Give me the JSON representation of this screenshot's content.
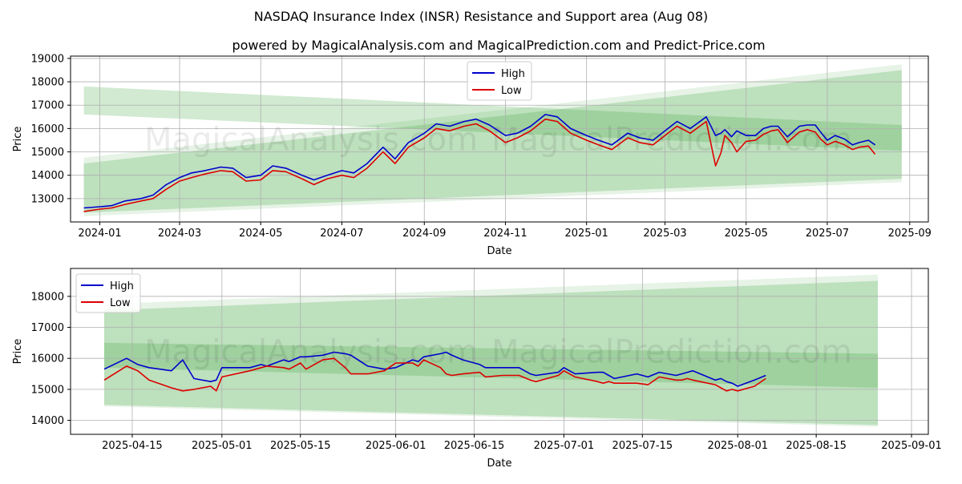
{
  "figure": {
    "title": "NASDAQ Insurance Index (INSR) Resistance and Support area (Aug 08)",
    "subtitle": "powered by MagicalAnalysis.com and MagicalPrediction.com and Predict-Price.com",
    "watermark_left": "MagicalAnalysis.com",
    "watermark_right": "MagicalPrediction.com"
  },
  "colors": {
    "high": "#0000cc",
    "low": "#dd0000",
    "band": "#2e9e2e"
  },
  "chart_data": [
    {
      "type": "line",
      "xlabel": "Date",
      "ylabel": "Price",
      "legend": {
        "position": "top-center",
        "entries": [
          "High",
          "Low"
        ]
      },
      "grid": true,
      "xlim": [
        "2023-12-10",
        "2025-09-15"
      ],
      "ylim": [
        12000,
        19100
      ],
      "xticks": [
        "2024-01-01",
        "2024-03-01",
        "2024-05-01",
        "2024-07-01",
        "2024-09-01",
        "2024-11-01",
        "2025-01-01",
        "2025-03-01",
        "2025-05-01",
        "2025-07-01",
        "2025-09-01"
      ],
      "xtick_labels": [
        "2024-01",
        "2024-03",
        "2024-05",
        "2024-07",
        "2024-09",
        "2024-11",
        "2025-01",
        "2025-03",
        "2025-05",
        "2025-07",
        "2025-09"
      ],
      "yticks": [
        13000,
        14000,
        15000,
        16000,
        17000,
        18000,
        19000
      ],
      "bands": [
        {
          "kind": "resistance",
          "x": [
            "2023-12-20",
            "2025-08-26"
          ],
          "upper": [
            17800,
            16150
          ],
          "lower": [
            16600,
            15050
          ]
        },
        {
          "kind": "support",
          "x": [
            "2023-12-20",
            "2025-08-26"
          ],
          "upper": [
            14500,
            18500
          ],
          "lower": [
            12400,
            13850
          ]
        },
        {
          "kind": "support-outer",
          "x": [
            "2023-12-20",
            "2025-08-26"
          ],
          "upper": [
            14750,
            18750
          ],
          "lower": [
            12250,
            13700
          ]
        }
      ],
      "series": [
        {
          "name": "High",
          "x": [
            "2023-12-20",
            "2024-01-01",
            "2024-01-10",
            "2024-01-20",
            "2024-02-01",
            "2024-02-10",
            "2024-02-20",
            "2024-03-01",
            "2024-03-10",
            "2024-03-20",
            "2024-04-01",
            "2024-04-10",
            "2024-04-20",
            "2024-05-01",
            "2024-05-10",
            "2024-05-20",
            "2024-06-01",
            "2024-06-10",
            "2024-06-20",
            "2024-07-01",
            "2024-07-10",
            "2024-07-20",
            "2024-08-01",
            "2024-08-10",
            "2024-08-20",
            "2024-09-01",
            "2024-09-10",
            "2024-09-20",
            "2024-10-01",
            "2024-10-10",
            "2024-10-20",
            "2024-11-01",
            "2024-11-10",
            "2024-11-20",
            "2024-12-01",
            "2024-12-10",
            "2024-12-20",
            "2025-01-01",
            "2025-01-10",
            "2025-01-20",
            "2025-02-01",
            "2025-02-10",
            "2025-02-20",
            "2025-03-01",
            "2025-03-10",
            "2025-03-20",
            "2025-04-01",
            "2025-04-08",
            "2025-04-12",
            "2025-04-15",
            "2025-04-20",
            "2025-04-24",
            "2025-05-01",
            "2025-05-08",
            "2025-05-14",
            "2025-05-20",
            "2025-05-25",
            "2025-06-01",
            "2025-06-05",
            "2025-06-10",
            "2025-06-16",
            "2025-06-22",
            "2025-06-26",
            "2025-07-01",
            "2025-07-07",
            "2025-07-14",
            "2025-07-20",
            "2025-07-25",
            "2025-08-01",
            "2025-08-06"
          ],
          "y": [
            12600,
            12650,
            12700,
            12900,
            13000,
            13150,
            13600,
            13900,
            14100,
            14200,
            14350,
            14300,
            13900,
            14000,
            14400,
            14300,
            14000,
            13800,
            14000,
            14200,
            14100,
            14500,
            15200,
            14700,
            15400,
            15800,
            16200,
            16100,
            16300,
            16400,
            16150,
            15700,
            15800,
            16100,
            16600,
            16500,
            16000,
            15700,
            15500,
            15300,
            15800,
            15600,
            15500,
            15900,
            16300,
            16000,
            16500,
            15700,
            15800,
            15950,
            15650,
            15900,
            15700,
            15700,
            16000,
            16100,
            16100,
            15650,
            15850,
            16100,
            16150,
            16150,
            15850,
            15500,
            15700,
            15550,
            15300,
            15400,
            15500,
            15300
          ]
        },
        {
          "name": "Low",
          "x": [
            "2023-12-20",
            "2024-01-01",
            "2024-01-10",
            "2024-01-20",
            "2024-02-01",
            "2024-02-10",
            "2024-02-20",
            "2024-03-01",
            "2024-03-10",
            "2024-03-20",
            "2024-04-01",
            "2024-04-10",
            "2024-04-20",
            "2024-05-01",
            "2024-05-10",
            "2024-05-20",
            "2024-06-01",
            "2024-06-10",
            "2024-06-20",
            "2024-07-01",
            "2024-07-10",
            "2024-07-20",
            "2024-08-01",
            "2024-08-10",
            "2024-08-20",
            "2024-09-01",
            "2024-09-10",
            "2024-09-20",
            "2024-10-01",
            "2024-10-10",
            "2024-10-20",
            "2024-11-01",
            "2024-11-10",
            "2024-11-20",
            "2024-12-01",
            "2024-12-10",
            "2024-12-20",
            "2025-01-01",
            "2025-01-10",
            "2025-01-20",
            "2025-02-01",
            "2025-02-10",
            "2025-02-20",
            "2025-03-01",
            "2025-03-10",
            "2025-03-20",
            "2025-04-01",
            "2025-04-08",
            "2025-04-12",
            "2025-04-15",
            "2025-04-20",
            "2025-04-24",
            "2025-05-01",
            "2025-05-08",
            "2025-05-14",
            "2025-05-20",
            "2025-05-25",
            "2025-06-01",
            "2025-06-05",
            "2025-06-10",
            "2025-06-16",
            "2025-06-22",
            "2025-06-26",
            "2025-07-01",
            "2025-07-07",
            "2025-07-14",
            "2025-07-20",
            "2025-07-25",
            "2025-08-01",
            "2025-08-06"
          ],
          "y": [
            12450,
            12550,
            12600,
            12750,
            12900,
            13000,
            13400,
            13750,
            13900,
            14050,
            14200,
            14150,
            13750,
            13800,
            14200,
            14150,
            13850,
            13600,
            13850,
            14000,
            13900,
            14300,
            15000,
            14500,
            15200,
            15600,
            16000,
            15900,
            16100,
            16200,
            15900,
            15400,
            15600,
            15900,
            16400,
            16300,
            15800,
            15500,
            15300,
            15100,
            15600,
            15400,
            15300,
            15700,
            16100,
            15800,
            16300,
            14400,
            14950,
            15700,
            15400,
            15000,
            15450,
            15500,
            15750,
            15900,
            15950,
            15400,
            15600,
            15850,
            15950,
            15850,
            15550,
            15300,
            15450,
            15300,
            15100,
            15200,
            15250,
            14900
          ]
        }
      ]
    },
    {
      "type": "line",
      "xlabel": "Date",
      "ylabel": "Price",
      "legend": {
        "position": "top-left",
        "entries": [
          "High",
          "Low"
        ]
      },
      "grid": true,
      "xlim": [
        "2025-04-04",
        "2025-09-04"
      ],
      "ylim": [
        13550,
        18900
      ],
      "xticks": [
        "2025-04-15",
        "2025-05-01",
        "2025-05-15",
        "2025-06-01",
        "2025-06-15",
        "2025-07-01",
        "2025-07-15",
        "2025-08-01",
        "2025-08-15",
        "2025-09-01"
      ],
      "xtick_labels": [
        "2025-04-15",
        "2025-05-01",
        "2025-05-15",
        "2025-06-01",
        "2025-06-15",
        "2025-07-01",
        "2025-07-15",
        "2025-08-01",
        "2025-08-15",
        "2025-09-01"
      ],
      "yticks": [
        14000,
        15000,
        16000,
        17000,
        18000
      ],
      "bands": [
        {
          "kind": "resistance",
          "x": [
            "2025-04-10",
            "2025-08-26"
          ],
          "upper": [
            16500,
            16150
          ],
          "lower": [
            15700,
            15050
          ]
        },
        {
          "kind": "support",
          "x": [
            "2025-04-10",
            "2025-08-26"
          ],
          "upper": [
            17550,
            18500
          ],
          "lower": [
            14500,
            13850
          ]
        },
        {
          "kind": "support-outer",
          "x": [
            "2025-04-10",
            "2025-08-26"
          ],
          "upper": [
            17750,
            18700
          ],
          "lower": [
            14450,
            13800
          ]
        }
      ],
      "series": [
        {
          "name": "High",
          "x": [
            "2025-04-10",
            "2025-04-14",
            "2025-04-16",
            "2025-04-18",
            "2025-04-22",
            "2025-04-24",
            "2025-04-26",
            "2025-04-29",
            "2025-04-30",
            "2025-05-01",
            "2025-05-06",
            "2025-05-08",
            "2025-05-09",
            "2025-05-12",
            "2025-05-13",
            "2025-05-15",
            "2025-05-16",
            "2025-05-19",
            "2025-05-21",
            "2025-05-23",
            "2025-05-24",
            "2025-05-27",
            "2025-05-30",
            "2025-06-01",
            "2025-06-04",
            "2025-06-05",
            "2025-06-06",
            "2025-06-09",
            "2025-06-10",
            "2025-06-11",
            "2025-06-13",
            "2025-06-16",
            "2025-06-17",
            "2025-06-20",
            "2025-06-23",
            "2025-06-25",
            "2025-06-26",
            "2025-06-30",
            "2025-07-01",
            "2025-07-03",
            "2025-07-07",
            "2025-07-08",
            "2025-07-09",
            "2025-07-10",
            "2025-07-14",
            "2025-07-16",
            "2025-07-18",
            "2025-07-21",
            "2025-07-22",
            "2025-07-23",
            "2025-07-24",
            "2025-07-28",
            "2025-07-29",
            "2025-07-30",
            "2025-07-31",
            "2025-08-01",
            "2025-08-04",
            "2025-08-06"
          ],
          "y": [
            15650,
            16000,
            15800,
            15700,
            15600,
            15950,
            15350,
            15250,
            15300,
            15700,
            15700,
            15800,
            15750,
            15950,
            15900,
            16050,
            16050,
            16100,
            16200,
            16150,
            16100,
            15750,
            15650,
            15700,
            15950,
            15900,
            16050,
            16150,
            16200,
            16100,
            15950,
            15800,
            15700,
            15700,
            15700,
            15500,
            15450,
            15550,
            15700,
            15500,
            15550,
            15550,
            15450,
            15350,
            15500,
            15400,
            15550,
            15450,
            15500,
            15550,
            15600,
            15300,
            15350,
            15250,
            15200,
            15100,
            15300,
            15450
          ]
        },
        {
          "name": "Low",
          "x": [
            "2025-04-10",
            "2025-04-14",
            "2025-04-16",
            "2025-04-18",
            "2025-04-22",
            "2025-04-24",
            "2025-04-26",
            "2025-04-29",
            "2025-04-30",
            "2025-05-01",
            "2025-05-06",
            "2025-05-08",
            "2025-05-09",
            "2025-05-12",
            "2025-05-13",
            "2025-05-15",
            "2025-05-16",
            "2025-05-19",
            "2025-05-21",
            "2025-05-23",
            "2025-05-24",
            "2025-05-27",
            "2025-05-30",
            "2025-06-01",
            "2025-06-04",
            "2025-06-05",
            "2025-06-06",
            "2025-06-09",
            "2025-06-10",
            "2025-06-11",
            "2025-06-13",
            "2025-06-16",
            "2025-06-17",
            "2025-06-20",
            "2025-06-23",
            "2025-06-25",
            "2025-06-26",
            "2025-06-30",
            "2025-07-01",
            "2025-07-03",
            "2025-07-07",
            "2025-07-08",
            "2025-07-09",
            "2025-07-10",
            "2025-07-14",
            "2025-07-16",
            "2025-07-18",
            "2025-07-21",
            "2025-07-22",
            "2025-07-23",
            "2025-07-24",
            "2025-07-28",
            "2025-07-29",
            "2025-07-30",
            "2025-07-31",
            "2025-08-01",
            "2025-08-04",
            "2025-08-06"
          ],
          "y": [
            15300,
            15750,
            15600,
            15300,
            15050,
            14950,
            15000,
            15100,
            14950,
            15400,
            15600,
            15700,
            15750,
            15700,
            15650,
            15850,
            15650,
            15950,
            16000,
            15700,
            15500,
            15500,
            15600,
            15850,
            15850,
            15750,
            15950,
            15700,
            15500,
            15450,
            15500,
            15550,
            15400,
            15450,
            15450,
            15300,
            15250,
            15450,
            15600,
            15400,
            15250,
            15200,
            15250,
            15200,
            15200,
            15150,
            15400,
            15300,
            15300,
            15350,
            15300,
            15150,
            15050,
            14950,
            15000,
            14950,
            15100,
            15350
          ]
        }
      ]
    }
  ]
}
